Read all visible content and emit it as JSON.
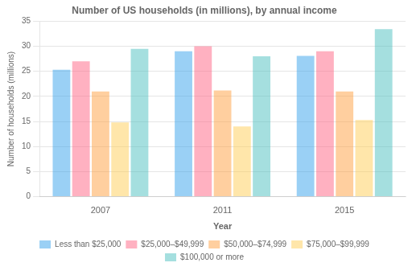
{
  "chart_data": {
    "type": "bar",
    "title": "Number of US households (in millions), by annual income",
    "xlabel": "Year",
    "ylabel": "Number of households (millions)",
    "categories": [
      "2007",
      "2011",
      "2015"
    ],
    "series": [
      {
        "name": "Less than $25,000",
        "values": [
          25.3,
          29.0,
          28.1
        ]
      },
      {
        "name": "$25,000–$49,999",
        "values": [
          27.0,
          30.0,
          29.0
        ]
      },
      {
        "name": "$50,000–$74,999",
        "values": [
          21.0,
          21.2,
          21.0
        ]
      },
      {
        "name": "$75,000–$99,999",
        "values": [
          14.8,
          14.0,
          15.3
        ]
      },
      {
        "name": "$100,000 or more",
        "values": [
          29.5,
          28.0,
          33.4
        ]
      }
    ],
    "ylim": [
      0,
      35
    ],
    "yticks": [
      0,
      5,
      10,
      15,
      20,
      25,
      30,
      35
    ],
    "grid": true,
    "legend": "bottom"
  }
}
